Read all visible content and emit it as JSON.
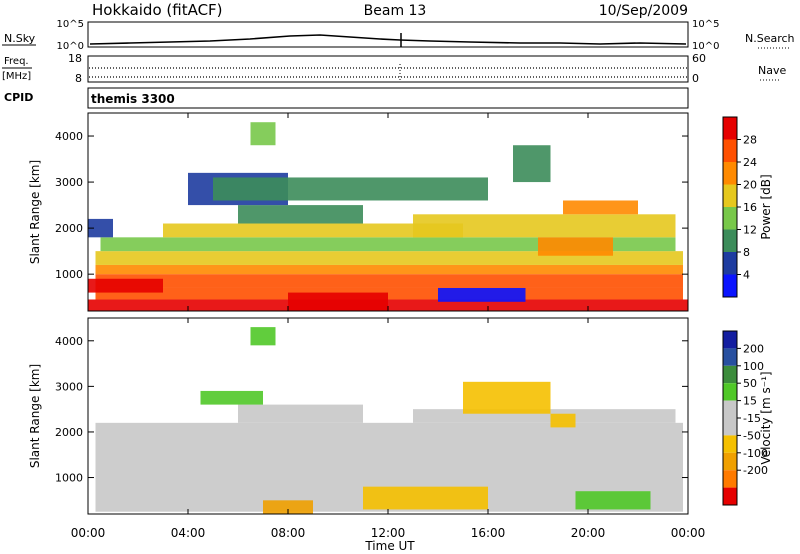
{
  "header": {
    "title_left": "Hokkaido (fitACF)",
    "title_center": "Beam 13",
    "title_right": "10/Sep/2009"
  },
  "nsky": {
    "label": "N.Sky",
    "tick_top": "10^5",
    "tick_bottom": "10^0",
    "right_tick_top": "10^5",
    "right_tick_bottom": "10^0",
    "right_label": "N.Search"
  },
  "freq": {
    "label_line1": "Freq.",
    "label_line2": "[MHz]",
    "tick_top": "18",
    "tick_bottom": "8",
    "right_tick_top": "60",
    "right_tick_bottom": "0",
    "right_label": "Nave"
  },
  "cpid": {
    "label": "CPID",
    "value": "themis 3300"
  },
  "xaxis": {
    "label": "Time UT",
    "ticks": [
      "00:00",
      "04:00",
      "08:00",
      "12:00",
      "16:00",
      "20:00",
      "00:00"
    ]
  },
  "colors": {
    "power": [
      "#0a14ff",
      "#1e3ca0",
      "#3c8c5a",
      "#78c84a",
      "#e6c81e",
      "#ff8a00",
      "#ff5000",
      "#e60000"
    ],
    "velocity_neg": [
      "#e60000",
      "#ff7a00",
      "#f0a000",
      "#f5c000"
    ],
    "velocity_mid": "#c8c8c8",
    "velocity_pos": [
      "#50c828",
      "#3c8c3c",
      "#2850a0",
      "#141ea0"
    ]
  },
  "chart_data": [
    {
      "type": "heatmap",
      "name": "power",
      "ylabel": "Slant Range [km]",
      "yticks": [
        "1000",
        "2000",
        "3000",
        "4000"
      ],
      "ylim": [
        200,
        4500
      ],
      "xlim_hours": [
        0,
        24
      ],
      "colorbar": {
        "label": "Power [dB]",
        "ticks": [
          "4",
          "8",
          "12",
          "16",
          "20",
          "24",
          "28"
        ]
      },
      "cells": [
        {
          "t0": 0.0,
          "t1": 24.0,
          "r0": 200,
          "r1": 450,
          "lvl": 7
        },
        {
          "t0": 0.3,
          "t1": 23.8,
          "r0": 450,
          "r1": 700,
          "lvl": 6
        },
        {
          "t0": 0.3,
          "t1": 23.8,
          "r0": 700,
          "r1": 1000,
          "lvl": 6
        },
        {
          "t0": 0.3,
          "t1": 23.8,
          "r0": 1000,
          "r1": 1200,
          "lvl": 5
        },
        {
          "t0": 0.3,
          "t1": 23.8,
          "r0": 1200,
          "r1": 1500,
          "lvl": 4
        },
        {
          "t0": 0.5,
          "t1": 23.5,
          "r0": 1500,
          "r1": 1800,
          "lvl": 3
        },
        {
          "t0": 0.0,
          "t1": 1.0,
          "r0": 1800,
          "r1": 2200,
          "lvl": 1
        },
        {
          "t0": 3.0,
          "t1": 15.0,
          "r0": 1800,
          "r1": 2100,
          "lvl": 4
        },
        {
          "t0": 6.0,
          "t1": 11.0,
          "r0": 2100,
          "r1": 2500,
          "lvl": 2
        },
        {
          "t0": 13.0,
          "t1": 23.5,
          "r0": 1800,
          "r1": 2300,
          "lvl": 4
        },
        {
          "t0": 18.0,
          "t1": 21.0,
          "r0": 1400,
          "r1": 1800,
          "lvl": 5
        },
        {
          "t0": 19.0,
          "t1": 22.0,
          "r0": 2300,
          "r1": 2600,
          "lvl": 5
        },
        {
          "t0": 4.0,
          "t1": 8.0,
          "r0": 2500,
          "r1": 3200,
          "lvl": 1
        },
        {
          "t0": 6.5,
          "t1": 7.5,
          "r0": 3800,
          "r1": 4300,
          "lvl": 3
        },
        {
          "t0": 17.0,
          "t1": 18.5,
          "r0": 3000,
          "r1": 3800,
          "lvl": 2
        },
        {
          "t0": 5.0,
          "t1": 16.0,
          "r0": 2600,
          "r1": 3100,
          "lvl": 2
        },
        {
          "t0": 0.0,
          "t1": 3.0,
          "r0": 600,
          "r1": 900,
          "lvl": 7
        },
        {
          "t0": 8.0,
          "t1": 12.0,
          "r0": 200,
          "r1": 600,
          "lvl": 7
        },
        {
          "t0": 14.0,
          "t1": 17.5,
          "r0": 400,
          "r1": 700,
          "lvl": 0
        }
      ]
    },
    {
      "type": "heatmap",
      "name": "velocity",
      "ylabel": "Slant Range [km]",
      "yticks": [
        "1000",
        "2000",
        "3000",
        "4000"
      ],
      "ylim": [
        200,
        4500
      ],
      "xlim_hours": [
        0,
        24
      ],
      "colorbar": {
        "label": "Velocity [m s⁻¹]",
        "ticks": [
          "200",
          "100",
          "50",
          "15",
          "-15",
          "-50",
          "-100",
          "-200"
        ]
      },
      "cells": [
        {
          "t0": 0.3,
          "t1": 23.8,
          "r0": 250,
          "r1": 2200,
          "lvl": 4
        },
        {
          "t0": 6.0,
          "t1": 11.0,
          "r0": 2200,
          "r1": 2600,
          "lvl": 4
        },
        {
          "t0": 13.0,
          "t1": 23.5,
          "r0": 2200,
          "r1": 2500,
          "lvl": 4
        },
        {
          "t0": 7.0,
          "t1": 9.0,
          "r0": 200,
          "r1": 500,
          "lvl": 6
        },
        {
          "t0": 11.0,
          "t1": 16.0,
          "r0": 300,
          "r1": 800,
          "lvl": 5
        },
        {
          "t0": 15.0,
          "t1": 18.5,
          "r0": 2400,
          "r1": 3100,
          "lvl": 5
        },
        {
          "t0": 18.5,
          "t1": 19.5,
          "r0": 2100,
          "r1": 2400,
          "lvl": 5
        },
        {
          "t0": 6.5,
          "t1": 7.5,
          "r0": 3900,
          "r1": 4300,
          "lvl": 2
        },
        {
          "t0": 4.5,
          "t1": 7.0,
          "r0": 2600,
          "r1": 2900,
          "lvl": 2
        },
        {
          "t0": 19.5,
          "t1": 22.5,
          "r0": 300,
          "r1": 700,
          "lvl": 2
        }
      ]
    }
  ]
}
